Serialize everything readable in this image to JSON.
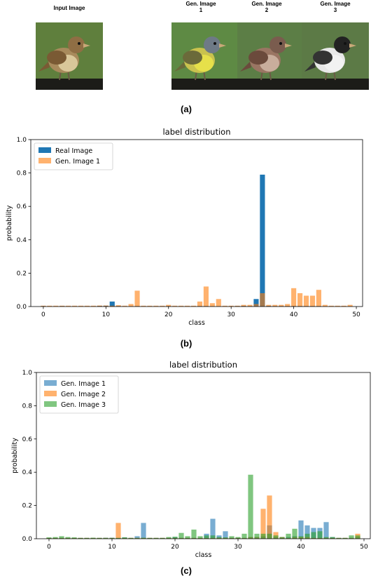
{
  "panel_a": {
    "label": "(a)",
    "input_title": "Input Image",
    "gen_titles": [
      {
        "line1": "Gen. Image",
        "line2": "1"
      },
      {
        "line1": "Gen. Image",
        "line2": "2"
      },
      {
        "line1": "Gen. Image",
        "line2": "3"
      }
    ],
    "birds": [
      {
        "body": "#a88a5c",
        "belly": "#d9c79a",
        "head": "#8f6e44",
        "wing": "#7a5a34",
        "bg": "#5f7f3d"
      },
      {
        "body": "#c9c24e",
        "belly": "#e6e04a",
        "head": "#6e7a86",
        "wing": "#6b6a3a",
        "bg": "#5e8a44"
      },
      {
        "body": "#9a7563",
        "belly": "#c8ad9c",
        "head": "#7a5c4e",
        "wing": "#6b4a3c",
        "bg": "#5c7e46"
      },
      {
        "body": "#e8e8e8",
        "belly": "#f2f2f2",
        "head": "#222222",
        "wing": "#333333",
        "bg": "#5c7a46"
      }
    ]
  },
  "panel_b": {
    "label": "(b)"
  },
  "panel_c": {
    "label": "(c)"
  },
  "chart_data": [
    {
      "type": "bar",
      "title": "label distribution",
      "xlabel": "class",
      "ylabel": "probability",
      "xlim": [
        -2,
        51
      ],
      "ylim": [
        0,
        1.0
      ],
      "xticks": [
        0,
        10,
        20,
        30,
        40,
        50
      ],
      "yticks": [
        0.0,
        0.2,
        0.4,
        0.6,
        0.8,
        1.0
      ],
      "legend_position": "top-left",
      "series": [
        {
          "name": "Real Image",
          "color": "#1f77b4",
          "opacity": 1.0,
          "values": [
            0.003,
            0.002,
            0.002,
            0.003,
            0.002,
            0.002,
            0.002,
            0.002,
            0.002,
            0.004,
            0.005,
            0.03,
            0.003,
            0.002,
            0.002,
            0.003,
            0.002,
            0.002,
            0.002,
            0.002,
            0.003,
            0.002,
            0.002,
            0.002,
            0.002,
            0.003,
            0.003,
            0.002,
            0.002,
            0.002,
            0.002,
            0.003,
            0.004,
            0.003,
            0.045,
            0.79,
            0.004,
            0.003,
            0.003,
            0.003,
            0.003,
            0.003,
            0.003,
            0.003,
            0.003,
            0.002,
            0.002,
            0.002,
            0.002,
            0.002
          ]
        },
        {
          "name": "Gen. Image 1",
          "color": "#ff7f0e",
          "opacity": 0.6,
          "values": [
            0.005,
            0.005,
            0.005,
            0.005,
            0.005,
            0.005,
            0.005,
            0.005,
            0.005,
            0.006,
            0.006,
            0.005,
            0.008,
            0.005,
            0.015,
            0.095,
            0.005,
            0.005,
            0.005,
            0.005,
            0.01,
            0.005,
            0.005,
            0.005,
            0.005,
            0.03,
            0.12,
            0.02,
            0.045,
            0.005,
            0.005,
            0.005,
            0.01,
            0.01,
            0.015,
            0.08,
            0.01,
            0.01,
            0.01,
            0.015,
            0.11,
            0.08,
            0.065,
            0.065,
            0.1,
            0.01,
            0.005,
            0.005,
            0.005,
            0.01
          ]
        }
      ]
    },
    {
      "type": "bar",
      "title": "label distribution",
      "xlabel": "class",
      "ylabel": "probability",
      "xlim": [
        -2,
        51
      ],
      "ylim": [
        0,
        1.0
      ],
      "xticks": [
        0,
        10,
        20,
        30,
        40,
        50
      ],
      "yticks": [
        0.0,
        0.2,
        0.4,
        0.6,
        0.8,
        1.0
      ],
      "legend_position": "top-left",
      "series": [
        {
          "name": "Gen. Image 1",
          "color": "#1f77b4",
          "opacity": 0.6,
          "values": [
            0.005,
            0.005,
            0.005,
            0.005,
            0.005,
            0.005,
            0.005,
            0.005,
            0.005,
            0.006,
            0.006,
            0.005,
            0.008,
            0.005,
            0.015,
            0.095,
            0.005,
            0.005,
            0.005,
            0.005,
            0.01,
            0.005,
            0.005,
            0.005,
            0.005,
            0.03,
            0.12,
            0.02,
            0.045,
            0.005,
            0.005,
            0.005,
            0.01,
            0.01,
            0.015,
            0.08,
            0.01,
            0.01,
            0.01,
            0.015,
            0.11,
            0.08,
            0.065,
            0.065,
            0.1,
            0.01,
            0.005,
            0.005,
            0.005,
            0.01
          ]
        },
        {
          "name": "Gen. Image 2",
          "color": "#ff7f0e",
          "opacity": 0.6,
          "values": [
            0.005,
            0.005,
            0.005,
            0.005,
            0.005,
            0.005,
            0.005,
            0.005,
            0.005,
            0.005,
            0.005,
            0.095,
            0.005,
            0.005,
            0.005,
            0.005,
            0.005,
            0.005,
            0.005,
            0.005,
            0.005,
            0.005,
            0.005,
            0.005,
            0.005,
            0.005,
            0.005,
            0.005,
            0.005,
            0.005,
            0.005,
            0.005,
            0.01,
            0.01,
            0.18,
            0.26,
            0.04,
            0.01,
            0.005,
            0.01,
            0.01,
            0.01,
            0.005,
            0.005,
            0.005,
            0.005,
            0.005,
            0.005,
            0.005,
            0.03
          ]
        },
        {
          "name": "Gen. Image 3",
          "color": "#2ca02c",
          "opacity": 0.6,
          "values": [
            0.008,
            0.01,
            0.015,
            0.01,
            0.008,
            0.005,
            0.005,
            0.006,
            0.005,
            0.005,
            0.005,
            0.005,
            0.008,
            0.005,
            0.005,
            0.006,
            0.005,
            0.005,
            0.005,
            0.01,
            0.012,
            0.035,
            0.015,
            0.055,
            0.015,
            0.02,
            0.02,
            0.01,
            0.008,
            0.015,
            0.01,
            0.03,
            0.385,
            0.03,
            0.03,
            0.03,
            0.02,
            0.01,
            0.03,
            0.06,
            0.015,
            0.03,
            0.04,
            0.045,
            0.01,
            0.01,
            0.005,
            0.005,
            0.02,
            0.02
          ]
        }
      ]
    }
  ]
}
